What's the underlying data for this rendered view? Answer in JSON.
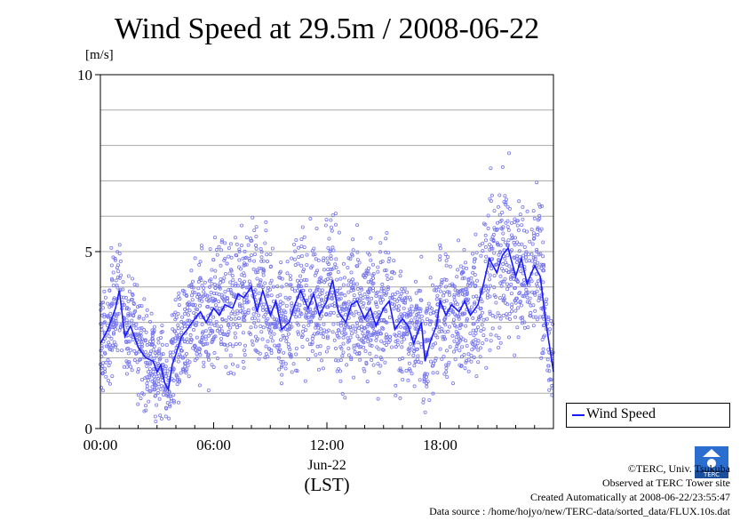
{
  "page": {
    "title": "Wind Speed at 29.5m / 2008-06-22",
    "unit_label": "[m/s]",
    "credits": [
      "©TERC, Univ. Tsukuba",
      "Observed at TERC Tower site",
      "Created Automatically at 2008-06-22/23:55:47",
      "Data source : /home/hojyo/new/TERC-data/sorted_data/FLUX.10s.dat"
    ],
    "logo_icon": "terc-logo-icon"
  },
  "chart_data": {
    "type": "line",
    "title": "Wind Speed at 29.5m / 2008-06-22",
    "ylabel": "[m/s]",
    "xlabel": "(LST)",
    "date_label": "Jun-22",
    "xlim": [
      0,
      24
    ],
    "ylim": [
      0,
      10
    ],
    "xticks": [
      {
        "value": 0,
        "label": "00:00"
      },
      {
        "value": 6,
        "label": "06:00"
      },
      {
        "value": 12,
        "label": "12:00"
      },
      {
        "value": 18,
        "label": "18:00"
      }
    ],
    "yticks": [
      {
        "value": 0,
        "label": "0"
      },
      {
        "value": 5,
        "label": "5"
      },
      {
        "value": 10,
        "label": "10"
      }
    ],
    "grid": true,
    "legend": "lower-right outside",
    "series": [
      {
        "name": "Wind Speed",
        "color": "#1a1aff",
        "scatter_color": "#7777ee",
        "x_hours": [
          0.0,
          0.4,
          0.8,
          1.0,
          1.3,
          1.6,
          2.0,
          2.4,
          2.8,
          3.0,
          3.2,
          3.4,
          3.6,
          3.8,
          4.0,
          4.3,
          4.6,
          5.0,
          5.3,
          5.6,
          6.0,
          6.3,
          6.6,
          7.0,
          7.3,
          7.6,
          8.0,
          8.3,
          8.6,
          9.0,
          9.3,
          9.6,
          10.0,
          10.3,
          10.6,
          11.0,
          11.3,
          11.6,
          12.0,
          12.3,
          12.6,
          13.0,
          13.3,
          13.6,
          14.0,
          14.3,
          14.6,
          15.0,
          15.3,
          15.6,
          16.0,
          16.3,
          16.6,
          17.0,
          17.2,
          17.5,
          17.8,
          18.0,
          18.3,
          18.6,
          19.0,
          19.3,
          19.6,
          20.0,
          20.3,
          20.6,
          21.0,
          21.3,
          21.6,
          22.0,
          22.3,
          22.6,
          23.0,
          23.3,
          23.6,
          24.0
        ],
        "values": [
          2.4,
          2.8,
          3.4,
          3.9,
          2.6,
          2.9,
          2.3,
          2.0,
          1.9,
          1.6,
          1.8,
          1.3,
          1.1,
          1.8,
          2.1,
          2.6,
          2.8,
          3.1,
          3.3,
          3.0,
          3.4,
          3.2,
          3.5,
          3.4,
          3.8,
          3.7,
          4.0,
          3.3,
          3.9,
          3.2,
          3.6,
          2.8,
          3.0,
          3.5,
          3.9,
          3.4,
          3.8,
          3.2,
          3.6,
          4.2,
          3.3,
          3.0,
          3.5,
          3.6,
          3.1,
          3.4,
          2.9,
          3.4,
          3.6,
          2.8,
          3.1,
          2.9,
          2.4,
          3.0,
          1.9,
          2.5,
          2.9,
          3.6,
          3.2,
          3.5,
          3.3,
          3.6,
          3.2,
          3.5,
          4.1,
          4.8,
          4.4,
          4.9,
          5.1,
          4.3,
          4.8,
          4.1,
          4.6,
          4.3,
          3.0,
          1.6
        ]
      }
    ]
  }
}
